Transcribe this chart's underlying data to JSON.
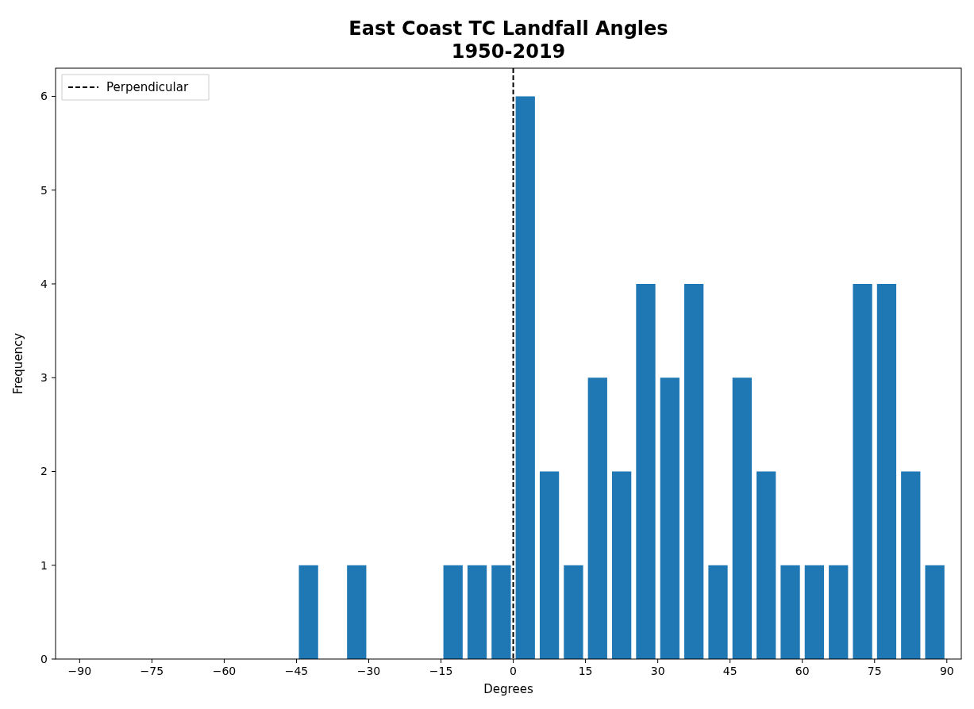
{
  "chart_data": {
    "type": "histogram",
    "title": "East Coast TC Landfall Angles\n1950-2019",
    "xlabel": "Degrees",
    "ylabel": "Frequency",
    "bins": [
      -90,
      -85,
      -80,
      -75,
      -70,
      -65,
      -60,
      -55,
      -50,
      -45,
      -40,
      -35,
      -30,
      -25,
      -20,
      -15,
      -10,
      -5,
      0,
      5,
      10,
      15,
      20,
      25,
      30,
      35,
      40,
      45,
      50,
      55,
      60,
      65,
      70,
      75,
      80,
      85,
      90
    ],
    "values": [
      0,
      0,
      0,
      0,
      0,
      0,
      0,
      0,
      0,
      1,
      0,
      1,
      0,
      0,
      0,
      1,
      1,
      1,
      6,
      2,
      1,
      3,
      2,
      4,
      3,
      4,
      1,
      3,
      2,
      1,
      1,
      1,
      4,
      4,
      2,
      1
    ],
    "color": "#1f77b4",
    "xlim": [
      -95,
      93
    ],
    "xticks": [
      -90,
      -75,
      -60,
      -45,
      -30,
      -15,
      0,
      15,
      30,
      45,
      60,
      75,
      90
    ],
    "ylim": [
      0,
      6.3
    ],
    "yticks": [
      0,
      1,
      2,
      3,
      4,
      5,
      6
    ],
    "ref_lines": [
      {
        "axis": "x",
        "value": 0,
        "label": "Perpendicular",
        "color": "#000000",
        "line_style": "dashed"
      }
    ],
    "legend": "top left"
  }
}
